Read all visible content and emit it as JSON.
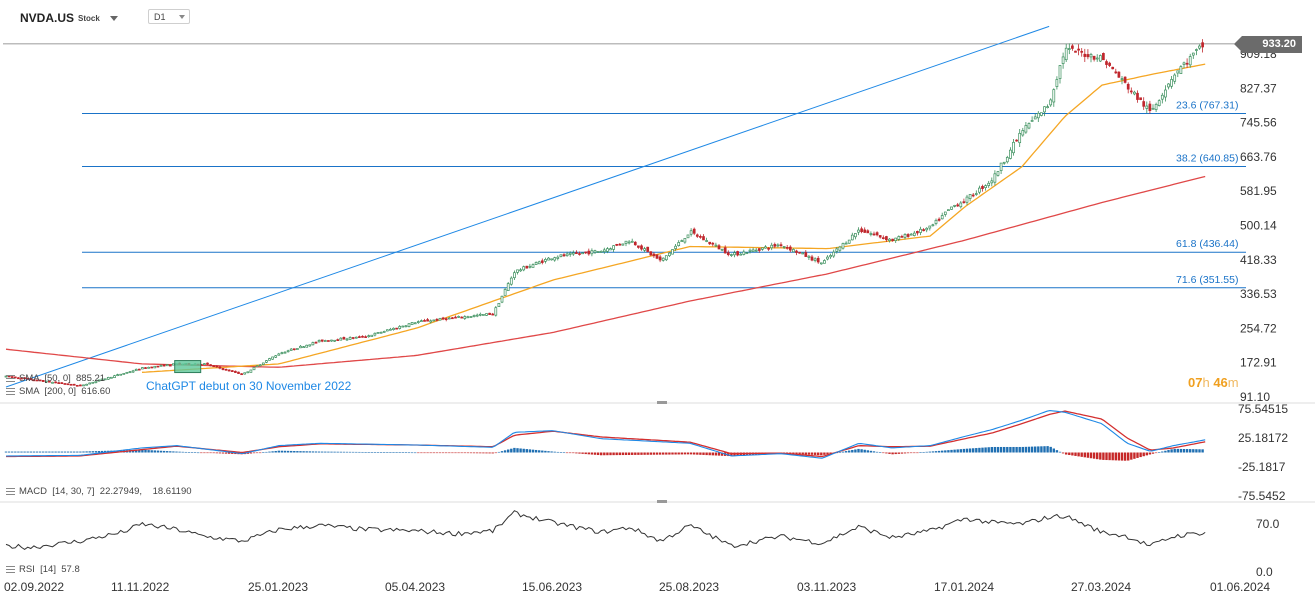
{
  "header": {
    "symbol": "NVDA.US",
    "asset_type": "Stock",
    "timeframe": "D1"
  },
  "current_price_label": "933.20",
  "countdown": {
    "hours": "07",
    "h_unit": "h",
    "minutes": "46",
    "m_unit": "m"
  },
  "legends": {
    "sma50": "SMA  [50, 0]  885.21",
    "sma200": "SMA  [200, 0]  616.60",
    "macd": "MACD  [14, 30, 7]  22.27949,    18.61190",
    "rsi": "RSI  [14]  57.8"
  },
  "colors": {
    "up_candle": "#3a8f5c",
    "down_candle": "#c0272d",
    "sma50": "#f5a623",
    "sma200": "#e04848",
    "fib": "#1a73c8",
    "annotation": "#1e88e5",
    "macd_line": "#1e88e5",
    "signal_line": "#d32f2f",
    "rsi_line": "#333333",
    "grid": "#e6e6e6"
  },
  "chart_data": [
    {
      "type": "candlestick",
      "x_axis_labels": [
        "02.09.2022",
        "11.11.2022",
        "25.01.2023",
        "05.04.2023",
        "15.06.2023",
        "25.08.2023",
        "03.11.2023",
        "17.01.2024",
        "27.03.2024",
        "01.06.2024"
      ],
      "y_ticks": [
        "909.18",
        "827.37",
        "745.56",
        "663.76",
        "581.95",
        "500.14",
        "418.33",
        "336.53",
        "254.72",
        "172.91",
        "91.10"
      ],
      "ylim": [
        91.1,
        990.0
      ],
      "last_price": 933.2,
      "fibonacci_levels": [
        {
          "label": "23.6 (767.31)",
          "value": 767.31
        },
        {
          "label": "38.2 (640.85)",
          "value": 640.85
        },
        {
          "label": "61.8 (436.44)",
          "value": 436.44
        },
        {
          "label": "71.6 (351.55)",
          "value": 351.55
        }
      ],
      "annotation": "ChatGPT debut on 30 November 2022",
      "trendline": {
        "from": [
          "02.09.2022",
          115
        ],
        "to": [
          "29.02.2024",
          975
        ]
      },
      "price_path": [
        [
          "02.09.2022",
          140
        ],
        [
          "10.10.2022",
          118
        ],
        [
          "11.11.2022",
          160
        ],
        [
          "30.11.2022",
          170
        ],
        [
          "15.12.2022",
          170
        ],
        [
          "05.01.2023",
          145
        ],
        [
          "25.01.2023",
          195
        ],
        [
          "15.02.2023",
          225
        ],
        [
          "10.03.2023",
          235
        ],
        [
          "05.04.2023",
          270
        ],
        [
          "15.05.2023",
          290
        ],
        [
          "26.05.2023",
          390
        ],
        [
          "15.06.2023",
          425
        ],
        [
          "10.07.2023",
          440
        ],
        [
          "25.07.2023",
          465
        ],
        [
          "10.08.2023",
          415
        ],
        [
          "25.08.2023",
          485
        ],
        [
          "15.09.2023",
          430
        ],
        [
          "10.10.2023",
          455
        ],
        [
          "31.10.2023",
          410
        ],
        [
          "20.11.2023",
          490
        ],
        [
          "08.12.2023",
          465
        ],
        [
          "29.12.2023",
          495
        ],
        [
          "10.01.2024",
          545
        ],
        [
          "17.01.2024",
          560
        ],
        [
          "31.01.2024",
          610
        ],
        [
          "15.02.2024",
          725
        ],
        [
          "29.02.2024",
          790
        ],
        [
          "08.03.2024",
          920
        ],
        [
          "27.03.2024",
          900
        ],
        [
          "19.04.2024",
          770
        ],
        [
          "30.04.2024",
          860
        ],
        [
          "15.05.2024",
          935
        ]
      ],
      "sma50_path": [
        [
          "11.11.2022",
          150
        ],
        [
          "25.01.2023",
          170
        ],
        [
          "05.04.2023",
          255
        ],
        [
          "15.06.2023",
          370
        ],
        [
          "25.08.2023",
          450
        ],
        [
          "03.11.2023",
          445
        ],
        [
          "29.12.2023",
          475
        ],
        [
          "17.01.2024",
          545
        ],
        [
          "15.02.2024",
          640
        ],
        [
          "08.03.2024",
          760
        ],
        [
          "27.03.2024",
          835
        ],
        [
          "19.04.2024",
          860
        ],
        [
          "15.05.2024",
          885
        ]
      ],
      "sma200_path": [
        [
          "02.09.2022",
          205
        ],
        [
          "11.11.2022",
          170
        ],
        [
          "25.01.2023",
          162
        ],
        [
          "05.04.2023",
          190
        ],
        [
          "15.06.2023",
          245
        ],
        [
          "25.08.2023",
          320
        ],
        [
          "03.11.2023",
          385
        ],
        [
          "17.01.2024",
          465
        ],
        [
          "27.03.2024",
          555
        ],
        [
          "15.05.2024",
          617
        ]
      ]
    },
    {
      "type": "macd",
      "params": [
        14,
        30,
        7
      ],
      "y_ticks": [
        "75.54515",
        "25.18172",
        "-25.1817",
        "-75.5452"
      ],
      "ylim": [
        -75.5452,
        75.54515
      ],
      "macd_path": [
        [
          "02.09.2022",
          -6
        ],
        [
          "10.10.2022",
          -5
        ],
        [
          "11.11.2022",
          8
        ],
        [
          "30.11.2022",
          12
        ],
        [
          "05.01.2023",
          -2
        ],
        [
          "25.01.2023",
          12
        ],
        [
          "15.02.2023",
          16
        ],
        [
          "05.04.2023",
          13
        ],
        [
          "15.05.2023",
          9
        ],
        [
          "26.05.2023",
          35
        ],
        [
          "15.06.2023",
          38
        ],
        [
          "10.07.2023",
          24
        ],
        [
          "25.08.2023",
          16
        ],
        [
          "15.09.2023",
          -6
        ],
        [
          "10.10.2023",
          -2
        ],
        [
          "31.10.2023",
          -10
        ],
        [
          "20.11.2023",
          16
        ],
        [
          "08.12.2023",
          8
        ],
        [
          "29.12.2023",
          12
        ],
        [
          "17.01.2024",
          28
        ],
        [
          "31.01.2024",
          40
        ],
        [
          "15.02.2024",
          56
        ],
        [
          "29.02.2024",
          73
        ],
        [
          "08.03.2024",
          70
        ],
        [
          "27.03.2024",
          50
        ],
        [
          "08.04.2024",
          16
        ],
        [
          "19.04.2024",
          2
        ],
        [
          "30.04.2024",
          12
        ],
        [
          "15.05.2024",
          22
        ]
      ],
      "signal_path": [
        [
          "02.09.2022",
          -7
        ],
        [
          "10.10.2022",
          -6
        ],
        [
          "11.11.2022",
          5
        ],
        [
          "30.11.2022",
          11
        ],
        [
          "05.01.2023",
          0
        ],
        [
          "25.01.2023",
          10
        ],
        [
          "15.02.2023",
          15
        ],
        [
          "05.04.2023",
          13
        ],
        [
          "15.05.2023",
          10
        ],
        [
          "26.05.2023",
          30
        ],
        [
          "15.06.2023",
          37
        ],
        [
          "10.07.2023",
          27
        ],
        [
          "25.08.2023",
          18
        ],
        [
          "15.09.2023",
          -2
        ],
        [
          "10.10.2023",
          -1
        ],
        [
          "31.10.2023",
          -7
        ],
        [
          "20.11.2023",
          12
        ],
        [
          "08.12.2023",
          10
        ],
        [
          "29.12.2023",
          11
        ],
        [
          "17.01.2024",
          24
        ],
        [
          "31.01.2024",
          34
        ],
        [
          "15.02.2024",
          50
        ],
        [
          "29.02.2024",
          66
        ],
        [
          "08.03.2024",
          72
        ],
        [
          "27.03.2024",
          58
        ],
        [
          "08.04.2024",
          25
        ],
        [
          "19.04.2024",
          4
        ],
        [
          "30.04.2024",
          8
        ],
        [
          "15.05.2024",
          18.6
        ]
      ],
      "last_values": {
        "macd": 22.27949,
        "signal": 18.6119
      }
    },
    {
      "type": "line",
      "name": "RSI",
      "params": [
        14
      ],
      "y_ticks": [
        "70.0",
        "0.0"
      ],
      "ylim": [
        0,
        100
      ],
      "last_value": 57.8,
      "rsi_path": [
        [
          "02.09.2022",
          38
        ],
        [
          "15.09.2022",
          36
        ],
        [
          "10.10.2022",
          45
        ],
        [
          "01.11.2022",
          58
        ],
        [
          "11.11.2022",
          70
        ],
        [
          "30.11.2022",
          62
        ],
        [
          "15.12.2022",
          52
        ],
        [
          "05.01.2023",
          45
        ],
        [
          "25.01.2023",
          62
        ],
        [
          "15.02.2023",
          68
        ],
        [
          "10.03.2023",
          62
        ],
        [
          "05.04.2023",
          60
        ],
        [
          "25.04.2023",
          56
        ],
        [
          "15.05.2023",
          60
        ],
        [
          "26.05.2023",
          86
        ],
        [
          "15.06.2023",
          72
        ],
        [
          "10.07.2023",
          58
        ],
        [
          "25.07.2023",
          65
        ],
        [
          "10.08.2023",
          45
        ],
        [
          "25.08.2023",
          68
        ],
        [
          "15.09.2023",
          38
        ],
        [
          "10.10.2023",
          52
        ],
        [
          "31.10.2023",
          42
        ],
        [
          "20.11.2023",
          66
        ],
        [
          "08.12.2023",
          50
        ],
        [
          "29.12.2023",
          60
        ],
        [
          "17.01.2024",
          78
        ],
        [
          "31.01.2024",
          72
        ],
        [
          "15.02.2024",
          70
        ],
        [
          "29.02.2024",
          80
        ],
        [
          "08.03.2024",
          82
        ],
        [
          "27.03.2024",
          58
        ],
        [
          "08.04.2024",
          52
        ],
        [
          "19.04.2024",
          38
        ],
        [
          "30.04.2024",
          52
        ],
        [
          "15.05.2024",
          57.8
        ]
      ]
    }
  ]
}
